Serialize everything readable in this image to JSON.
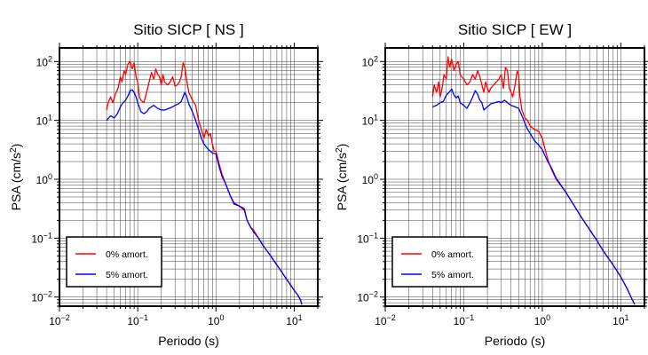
{
  "chart_data": [
    {
      "type": "line",
      "title": "Sitio SICP [ NS ]",
      "xlabel": "Periodo (s)",
      "ylabel_main": "PSA (cm/s",
      "ylabel_sup": "2",
      "ylabel_close": ")",
      "xscale": "log",
      "yscale": "log",
      "xlim": [
        0.01,
        20
      ],
      "ylim": [
        0.007,
        170
      ],
      "grid": true,
      "legend_position": "bottom-left",
      "x_ticks": [
        {
          "value": 0.01,
          "base": "10",
          "exp": "−2"
        },
        {
          "value": 0.1,
          "base": "10",
          "exp": "−1"
        },
        {
          "value": 1,
          "base": "10",
          "exp": "0"
        },
        {
          "value": 10,
          "base": "10",
          "exp": "1"
        }
      ],
      "y_ticks": [
        {
          "value": 0.01,
          "base": "10",
          "exp": "−2"
        },
        {
          "value": 0.1,
          "base": "10",
          "exp": "−1"
        },
        {
          "value": 1,
          "base": "10",
          "exp": "0"
        },
        {
          "value": 10,
          "base": "10",
          "exp": "1"
        },
        {
          "value": 100,
          "base": "10",
          "exp": "2"
        }
      ],
      "series": [
        {
          "name": "0% amort.",
          "color": "#ff0000",
          "points": [
            [
              0.04,
              15
            ],
            [
              0.042,
              20
            ],
            [
              0.045,
              25
            ],
            [
              0.048,
              20
            ],
            [
              0.052,
              28
            ],
            [
              0.056,
              35
            ],
            [
              0.06,
              55
            ],
            [
              0.063,
              45
            ],
            [
              0.067,
              70
            ],
            [
              0.07,
              60
            ],
            [
              0.075,
              90
            ],
            [
              0.08,
              100
            ],
            [
              0.085,
              75
            ],
            [
              0.09,
              95
            ],
            [
              0.095,
              55
            ],
            [
              0.1,
              45
            ],
            [
              0.105,
              25
            ],
            [
              0.11,
              22
            ],
            [
              0.12,
              20
            ],
            [
              0.13,
              30
            ],
            [
              0.14,
              45
            ],
            [
              0.15,
              65
            ],
            [
              0.16,
              50
            ],
            [
              0.17,
              75
            ],
            [
              0.18,
              60
            ],
            [
              0.19,
              55
            ],
            [
              0.2,
              40
            ],
            [
              0.21,
              60
            ],
            [
              0.22,
              45
            ],
            [
              0.24,
              40
            ],
            [
              0.26,
              45
            ],
            [
              0.28,
              55
            ],
            [
              0.3,
              38
            ],
            [
              0.32,
              40
            ],
            [
              0.34,
              45
            ],
            [
              0.36,
              55
            ],
            [
              0.38,
              95
            ],
            [
              0.4,
              80
            ],
            [
              0.42,
              50
            ],
            [
              0.45,
              30
            ],
            [
              0.5,
              22
            ],
            [
              0.55,
              18
            ],
            [
              0.6,
              10
            ],
            [
              0.65,
              7
            ],
            [
              0.7,
              5
            ],
            [
              0.75,
              7
            ],
            [
              0.8,
              5.5
            ],
            [
              0.85,
              6
            ],
            [
              0.9,
              4
            ],
            [
              0.95,
              3
            ],
            [
              1.0,
              3
            ],
            [
              1.1,
              1.8
            ],
            [
              1.2,
              1.2
            ],
            [
              1.3,
              0.9
            ],
            [
              1.4,
              0.7
            ],
            [
              1.5,
              0.55
            ],
            [
              1.7,
              0.4
            ],
            [
              2.0,
              0.35
            ],
            [
              2.3,
              0.32
            ],
            [
              2.5,
              0.2
            ],
            [
              2.8,
              0.15
            ],
            [
              3.0,
              0.14
            ],
            [
              3.5,
              0.1
            ],
            [
              4,
              0.075
            ],
            [
              5,
              0.05
            ],
            [
              6,
              0.035
            ],
            [
              7,
              0.026
            ],
            [
              8,
              0.02
            ],
            [
              9,
              0.016
            ],
            [
              10,
              0.013
            ],
            [
              11,
              0.011
            ],
            [
              12,
              0.009
            ],
            [
              12.5,
              0.0075
            ]
          ]
        },
        {
          "name": "5% amort.",
          "color": "#0000ff",
          "points": [
            [
              0.04,
              10
            ],
            [
              0.045,
              12
            ],
            [
              0.05,
              11
            ],
            [
              0.055,
              13
            ],
            [
              0.06,
              17
            ],
            [
              0.065,
              20
            ],
            [
              0.07,
              22
            ],
            [
              0.075,
              26
            ],
            [
              0.08,
              32
            ],
            [
              0.085,
              33
            ],
            [
              0.09,
              30
            ],
            [
              0.095,
              25
            ],
            [
              0.1,
              20
            ],
            [
              0.11,
              14
            ],
            [
              0.12,
              13
            ],
            [
              0.13,
              14
            ],
            [
              0.14,
              16
            ],
            [
              0.15,
              17
            ],
            [
              0.16,
              18
            ],
            [
              0.17,
              17
            ],
            [
              0.18,
              16
            ],
            [
              0.2,
              15
            ],
            [
              0.22,
              15
            ],
            [
              0.25,
              16
            ],
            [
              0.28,
              17
            ],
            [
              0.3,
              18
            ],
            [
              0.33,
              19
            ],
            [
              0.36,
              21
            ],
            [
              0.4,
              30
            ],
            [
              0.42,
              26
            ],
            [
              0.45,
              19
            ],
            [
              0.5,
              14
            ],
            [
              0.55,
              10
            ],
            [
              0.6,
              7
            ],
            [
              0.65,
              5
            ],
            [
              0.7,
              4
            ],
            [
              0.8,
              3.2
            ],
            [
              0.9,
              2.8
            ],
            [
              1.0,
              2.7
            ],
            [
              1.1,
              1.6
            ],
            [
              1.2,
              1.1
            ],
            [
              1.3,
              0.9
            ],
            [
              1.4,
              0.7
            ],
            [
              1.5,
              0.55
            ],
            [
              1.7,
              0.38
            ],
            [
              2.0,
              0.35
            ],
            [
              2.3,
              0.3
            ],
            [
              2.5,
              0.2
            ],
            [
              2.8,
              0.15
            ],
            [
              3.0,
              0.13
            ],
            [
              3.5,
              0.1
            ],
            [
              4,
              0.075
            ],
            [
              5,
              0.05
            ],
            [
              6,
              0.035
            ],
            [
              7,
              0.026
            ],
            [
              8,
              0.02
            ],
            [
              9,
              0.016
            ],
            [
              10,
              0.013
            ],
            [
              11,
              0.011
            ],
            [
              12,
              0.009
            ],
            [
              12.5,
              0.0075
            ]
          ]
        }
      ]
    },
    {
      "type": "line",
      "title": "Sitio SICP [ EW ]",
      "xlabel": "Periodo (s)",
      "ylabel_main": "PSA (cm/s",
      "ylabel_sup": "2",
      "ylabel_close": ")",
      "xscale": "log",
      "yscale": "log",
      "xlim": [
        0.01,
        20
      ],
      "ylim": [
        0.007,
        170
      ],
      "grid": true,
      "legend_position": "bottom-left",
      "x_ticks": [
        {
          "value": 0.01,
          "base": "10",
          "exp": "−2"
        },
        {
          "value": 0.1,
          "base": "10",
          "exp": "−1"
        },
        {
          "value": 1,
          "base": "10",
          "exp": "0"
        },
        {
          "value": 10,
          "base": "10",
          "exp": "1"
        }
      ],
      "y_ticks": [
        {
          "value": 0.01,
          "base": "10",
          "exp": "−2"
        },
        {
          "value": 0.1,
          "base": "10",
          "exp": "−1"
        },
        {
          "value": 1,
          "base": "10",
          "exp": "0"
        },
        {
          "value": 10,
          "base": "10",
          "exp": "1"
        },
        {
          "value": 100,
          "base": "10",
          "exp": "2"
        }
      ],
      "series": [
        {
          "name": "0% amort.",
          "color": "#ff0000",
          "points": [
            [
              0.04,
              25
            ],
            [
              0.042,
              40
            ],
            [
              0.045,
              30
            ],
            [
              0.048,
              45
            ],
            [
              0.05,
              25
            ],
            [
              0.053,
              35
            ],
            [
              0.056,
              60
            ],
            [
              0.06,
              50
            ],
            [
              0.063,
              120
            ],
            [
              0.066,
              80
            ],
            [
              0.07,
              110
            ],
            [
              0.075,
              70
            ],
            [
              0.08,
              90
            ],
            [
              0.085,
              100
            ],
            [
              0.09,
              60
            ],
            [
              0.1,
              50
            ],
            [
              0.11,
              40
            ],
            [
              0.12,
              45
            ],
            [
              0.13,
              60
            ],
            [
              0.14,
              50
            ],
            [
              0.15,
              70
            ],
            [
              0.16,
              55
            ],
            [
              0.17,
              40
            ],
            [
              0.18,
              30
            ],
            [
              0.19,
              45
            ],
            [
              0.2,
              35
            ],
            [
              0.21,
              30
            ],
            [
              0.22,
              35
            ],
            [
              0.24,
              40
            ],
            [
              0.26,
              45
            ],
            [
              0.28,
              50
            ],
            [
              0.3,
              60
            ],
            [
              0.32,
              35
            ],
            [
              0.34,
              80
            ],
            [
              0.36,
              70
            ],
            [
              0.38,
              35
            ],
            [
              0.4,
              30
            ],
            [
              0.42,
              25
            ],
            [
              0.45,
              40
            ],
            [
              0.48,
              70
            ],
            [
              0.5,
              60
            ],
            [
              0.52,
              25
            ],
            [
              0.55,
              15
            ],
            [
              0.6,
              11
            ],
            [
              0.65,
              10
            ],
            [
              0.7,
              8
            ],
            [
              0.8,
              7
            ],
            [
              0.9,
              6.5
            ],
            [
              1.0,
              5
            ],
            [
              1.1,
              3
            ],
            [
              1.2,
              2
            ],
            [
              1.3,
              1.5
            ],
            [
              1.5,
              1.0
            ],
            [
              2,
              0.6
            ],
            [
              3,
              0.25
            ],
            [
              4,
              0.14
            ],
            [
              5,
              0.09
            ],
            [
              6,
              0.06
            ],
            [
              7,
              0.045
            ],
            [
              8,
              0.035
            ],
            [
              10,
              0.022
            ],
            [
              12,
              0.014
            ],
            [
              14,
              0.009
            ],
            [
              15,
              0.0075
            ]
          ]
        },
        {
          "name": "5% amort.",
          "color": "#0000ff",
          "points": [
            [
              0.04,
              17
            ],
            [
              0.045,
              18
            ],
            [
              0.05,
              20
            ],
            [
              0.055,
              21
            ],
            [
              0.06,
              27
            ],
            [
              0.065,
              30
            ],
            [
              0.07,
              34
            ],
            [
              0.075,
              27
            ],
            [
              0.08,
              24
            ],
            [
              0.085,
              26
            ],
            [
              0.09,
              20
            ],
            [
              0.1,
              18
            ],
            [
              0.11,
              16
            ],
            [
              0.12,
              20
            ],
            [
              0.13,
              25
            ],
            [
              0.14,
              32
            ],
            [
              0.15,
              28
            ],
            [
              0.16,
              22
            ],
            [
              0.17,
              20
            ],
            [
              0.18,
              15
            ],
            [
              0.2,
              17
            ],
            [
              0.22,
              19
            ],
            [
              0.25,
              20
            ],
            [
              0.28,
              21
            ],
            [
              0.3,
              20
            ],
            [
              0.33,
              22
            ],
            [
              0.36,
              20
            ],
            [
              0.4,
              18
            ],
            [
              0.45,
              17
            ],
            [
              0.5,
              16
            ],
            [
              0.55,
              12
            ],
            [
              0.6,
              9
            ],
            [
              0.65,
              7
            ],
            [
              0.7,
              6
            ],
            [
              0.8,
              4.5
            ],
            [
              0.9,
              3.8
            ],
            [
              1.0,
              3.2
            ],
            [
              1.1,
              2.4
            ],
            [
              1.2,
              1.9
            ],
            [
              1.3,
              1.6
            ],
            [
              1.5,
              1.05
            ],
            [
              2,
              0.6
            ],
            [
              3,
              0.25
            ],
            [
              4,
              0.14
            ],
            [
              5,
              0.09
            ],
            [
              6,
              0.06
            ],
            [
              7,
              0.045
            ],
            [
              8,
              0.035
            ],
            [
              10,
              0.022
            ],
            [
              12,
              0.014
            ],
            [
              14,
              0.009
            ],
            [
              15,
              0.0075
            ]
          ]
        }
      ]
    }
  ]
}
